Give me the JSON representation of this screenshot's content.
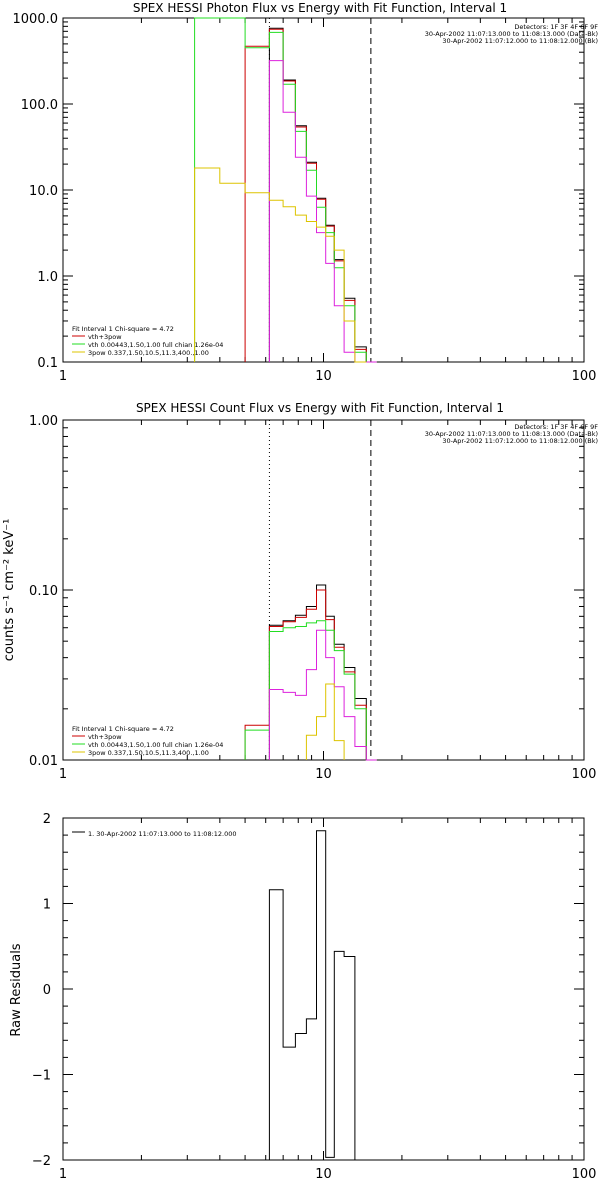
{
  "colors": {
    "black": "#000000",
    "red": "#cc0000",
    "green": "#22dd22",
    "magenta": "#dd22dd",
    "yellow": "#ddc400"
  },
  "chart_data": [
    {
      "type": "line",
      "title": "SPEX HESSI Photon Flux vs Energy with Fit Function, Interval 1",
      "xlabel": "",
      "ylabel": "",
      "xscale": "log",
      "yscale": "log",
      "xlim": [
        1,
        100
      ],
      "ylim": [
        0.1,
        1000
      ],
      "xticks": [
        "1",
        "10",
        "100"
      ],
      "yticks": [
        "0.1",
        "1.0",
        "10.0",
        "100.0",
        "1000.0"
      ],
      "vlines": [
        {
          "x": 6.2,
          "style": "dotted"
        },
        {
          "x": 15.2,
          "style": "dashed"
        }
      ],
      "header_lines": [
        "Detectors: 1F 3F 4F 6F 9F",
        "30-Apr-2002 11:07:13.000 to 11:08:13.000 (Data-Bk)",
        "30-Apr-2002 11:07:12.000 to 11:08:12.000 (Bk)"
      ],
      "legend": {
        "title": "Fit Interval  1    Chi-square = 4.72",
        "entries": [
          {
            "label": "vth+3pow",
            "color": "red"
          },
          {
            "label": "vth 0.00443,1.50,1.00  full chian 1.26e-04",
            "color": "green"
          },
          {
            "label": "3pow 0.337,1.50,10.5,11.3,400.,1.00",
            "color": "yellow"
          }
        ]
      },
      "series": [
        {
          "color": "black",
          "step": true,
          "edges": [
            6.2,
            7.0,
            7.8,
            8.6,
            9.4,
            10.2,
            11.0,
            12.0,
            13.2,
            14.6,
            16.0
          ],
          "values": [
            760,
            190,
            56,
            21,
            8.0,
            3.9,
            1.55,
            0.55,
            0.15,
            0.1
          ]
        },
        {
          "color": "red",
          "step": true,
          "edges": [
            5.0,
            6.2,
            7.0,
            7.8,
            8.6,
            9.4,
            10.2,
            11.0,
            12.0,
            13.2,
            14.6,
            16.0
          ],
          "values": [
            470,
            740,
            185,
            54,
            20.5,
            7.8,
            3.8,
            1.5,
            0.52,
            0.14,
            0.1
          ]
        },
        {
          "color": "green",
          "step": true,
          "edges": [
            3.2,
            5.0,
            6.2,
            7.0,
            7.8,
            8.6,
            9.4,
            10.2,
            11.0,
            12.0,
            13.2,
            14.6,
            16.0
          ],
          "values": [
            1000,
            450,
            680,
            170,
            48,
            17,
            6.3,
            3.2,
            1.25,
            0.45,
            0.13,
            0.1
          ]
        },
        {
          "color": "magenta",
          "step": true,
          "edges": [
            6.2,
            7.0,
            7.8,
            8.6,
            9.4,
            10.2,
            11.0,
            12.0,
            13.2,
            14.6,
            16.0
          ],
          "values": [
            320,
            80,
            24,
            8.5,
            3.2,
            1.4,
            0.45,
            0.13,
            0.1,
            0.1
          ]
        },
        {
          "color": "yellow",
          "step": true,
          "edges": [
            3.2,
            4.0,
            5.0,
            6.2,
            7.0,
            7.8,
            8.6,
            9.4,
            10.2,
            11.0,
            12.0,
            13.2,
            14.6
          ],
          "values": [
            18,
            12,
            9.3,
            7.6,
            6.4,
            5.1,
            4.3,
            3.7,
            2.9,
            2.0,
            0.3,
            0.1
          ]
        }
      ]
    },
    {
      "type": "line",
      "title": "SPEX HESSI Count Flux vs Energy with Fit Function, Interval 1",
      "xlabel": "",
      "ylabel": "counts s⁻¹ cm⁻² keV⁻¹",
      "xscale": "log",
      "yscale": "log",
      "xlim": [
        1,
        100
      ],
      "ylim": [
        0.01,
        1.0
      ],
      "xticks": [
        "1",
        "10",
        "100"
      ],
      "yticks": [
        "0.01",
        "0.10",
        "1.00"
      ],
      "vlines": [
        {
          "x": 6.2,
          "style": "dotted"
        },
        {
          "x": 15.2,
          "style": "dashed"
        }
      ],
      "header_lines": [
        "Detectors: 1F 3F 4F 6F 9F",
        "30-Apr-2002 11:07:13.000 to 11:08:13.000 (Data-Bk)",
        "30-Apr-2002 11:07:12.000 to 11:08:12.000 (Bk)"
      ],
      "legend": {
        "title": "Fit Interval  1    Chi-square = 4.72",
        "entries": [
          {
            "label": "vth+3pow",
            "color": "red"
          },
          {
            "label": "vth 0.00443,1.50,1.00  full chian 1.26e-04",
            "color": "green"
          },
          {
            "label": "3pow 0.337,1.50,10.5,11.3,400.,1.00",
            "color": "yellow"
          }
        ]
      },
      "series": [
        {
          "color": "black",
          "step": true,
          "edges": [
            6.2,
            7.0,
            7.8,
            8.6,
            9.4,
            10.2,
            11.0,
            12.0,
            13.2,
            14.6,
            16.0
          ],
          "values": [
            0.062,
            0.066,
            0.071,
            0.08,
            0.107,
            0.07,
            0.048,
            0.035,
            0.023,
            0.01
          ]
        },
        {
          "color": "red",
          "step": true,
          "edges": [
            5.0,
            6.2,
            7.0,
            7.8,
            8.6,
            9.4,
            10.2,
            11.0,
            12.0,
            13.2,
            14.6,
            16.0
          ],
          "values": [
            0.016,
            0.061,
            0.065,
            0.069,
            0.077,
            0.1,
            0.067,
            0.046,
            0.033,
            0.021,
            0.01
          ]
        },
        {
          "color": "green",
          "step": true,
          "edges": [
            5.0,
            6.2,
            7.0,
            7.8,
            8.6,
            9.4,
            10.2,
            11.0,
            12.0,
            13.2,
            14.6,
            16.0
          ],
          "values": [
            0.015,
            0.057,
            0.06,
            0.061,
            0.064,
            0.066,
            0.058,
            0.044,
            0.032,
            0.02,
            0.01
          ]
        },
        {
          "color": "magenta",
          "step": true,
          "edges": [
            6.2,
            7.0,
            7.8,
            8.6,
            9.4,
            10.2,
            11.0,
            12.0,
            13.2,
            14.6,
            16.0
          ],
          "values": [
            0.026,
            0.025,
            0.024,
            0.034,
            0.058,
            0.04,
            0.027,
            0.018,
            0.012,
            0.01
          ]
        },
        {
          "color": "yellow",
          "step": true,
          "edges": [
            8.6,
            9.4,
            10.2,
            11.0,
            12.0
          ],
          "values": [
            0.014,
            0.018,
            0.028,
            0.013
          ]
        }
      ]
    },
    {
      "type": "line",
      "title": "",
      "xlabel": "",
      "ylabel": "Raw Residuals",
      "xscale": "log",
      "yscale": "linear",
      "xlim": [
        1,
        100
      ],
      "ylim": [
        -2,
        2
      ],
      "xticks": [
        "1",
        "10",
        "100"
      ],
      "yticks": [
        "−2",
        "−1",
        "0",
        "1",
        "2"
      ],
      "legend": {
        "title": "",
        "entries": [
          {
            "label": "1. 30-Apr-2002 11:07:13.000 to 11:08:12.000",
            "color": "black"
          }
        ]
      },
      "series": [
        {
          "color": "black",
          "step": true,
          "edges": [
            6.2,
            7.0,
            7.8,
            8.6,
            9.4,
            10.2,
            11.0,
            12.0,
            13.2,
            14.6
          ],
          "values": [
            1.16,
            -0.68,
            -0.52,
            -0.35,
            1.85,
            -1.97,
            0.44,
            0.38,
            -2.0
          ]
        }
      ]
    }
  ]
}
